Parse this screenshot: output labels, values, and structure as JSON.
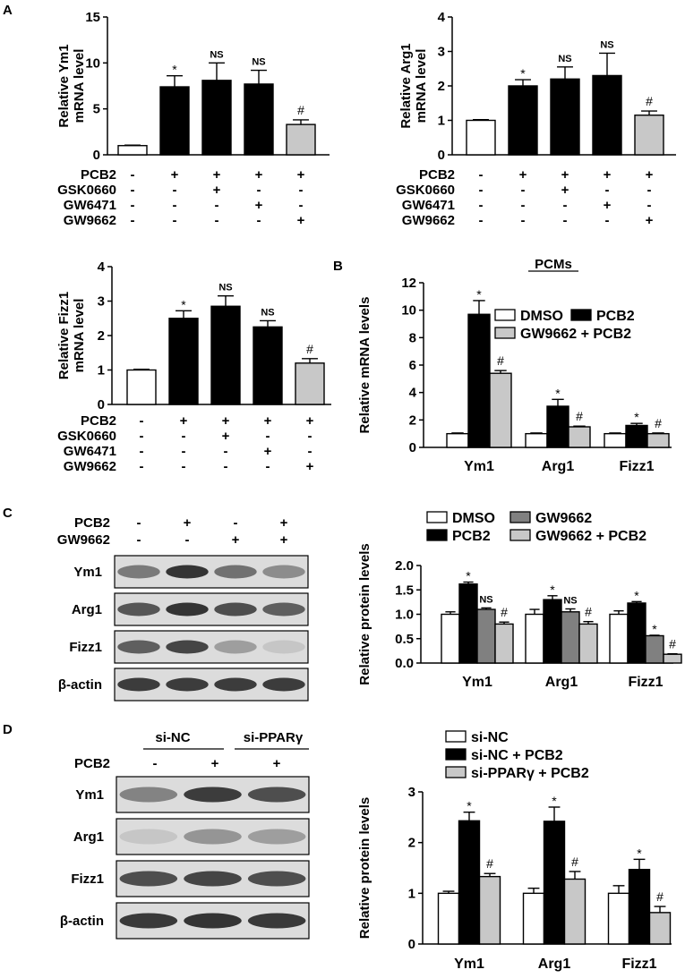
{
  "panel_letters": {
    "a": "A",
    "b": "B",
    "c": "C",
    "d": "D"
  },
  "colors": {
    "white": "#ffffff",
    "black": "#000000",
    "dark_gray": "#808080",
    "light_gray": "#c8c8c8",
    "band": "#2a2a2a",
    "blot_bg": "#dcdcdc"
  },
  "chart_data": [
    {
      "id": "A1",
      "type": "bar",
      "ylabel": "Relative Ym1 mRNA level",
      "ylim": [
        0,
        15
      ],
      "yticks": [
        "0",
        "5",
        "10",
        "15"
      ],
      "values": [
        1.0,
        7.4,
        8.1,
        7.7,
        3.3
      ],
      "errors": [
        0.05,
        1.2,
        1.9,
        1.5,
        0.5
      ],
      "fills": [
        "white",
        "black",
        "black",
        "black",
        "light_gray"
      ],
      "annotations": [
        "",
        "*",
        "NS",
        "NS",
        "#"
      ],
      "treatments": [
        {
          "label": "PCB2",
          "marks": [
            "-",
            "+",
            "+",
            "+",
            "+"
          ]
        },
        {
          "label": "GSK0660",
          "marks": [
            "-",
            "-",
            "+",
            "-",
            "-"
          ]
        },
        {
          "label": "GW6471",
          "marks": [
            "-",
            "-",
            "-",
            "+",
            "-"
          ]
        },
        {
          "label": "GW9662",
          "marks": [
            "-",
            "-",
            "-",
            "-",
            "+"
          ]
        }
      ]
    },
    {
      "id": "A2",
      "type": "bar",
      "ylabel": "Relative Arg1 mRNA level",
      "ylim": [
        0,
        4
      ],
      "yticks": [
        "0",
        "1",
        "2",
        "3",
        "4"
      ],
      "values": [
        1.0,
        2.0,
        2.2,
        2.3,
        1.15
      ],
      "errors": [
        0.02,
        0.18,
        0.35,
        0.65,
        0.12
      ],
      "fills": [
        "white",
        "black",
        "black",
        "black",
        "light_gray"
      ],
      "annotations": [
        "",
        "*",
        "NS",
        "NS",
        "#"
      ],
      "treatments": [
        {
          "label": "PCB2",
          "marks": [
            "-",
            "+",
            "+",
            "+",
            "+"
          ]
        },
        {
          "label": "GSK0660",
          "marks": [
            "-",
            "-",
            "+",
            "-",
            "-"
          ]
        },
        {
          "label": "GW6471",
          "marks": [
            "-",
            "-",
            "-",
            "+",
            "-"
          ]
        },
        {
          "label": "GW9662",
          "marks": [
            "-",
            "-",
            "-",
            "-",
            "+"
          ]
        }
      ]
    },
    {
      "id": "A3",
      "type": "bar",
      "ylabel": "Relative Fizz1 mRNA level",
      "ylim": [
        0,
        4
      ],
      "yticks": [
        "0",
        "1",
        "2",
        "3",
        "4"
      ],
      "values": [
        1.0,
        2.5,
        2.85,
        2.25,
        1.2
      ],
      "errors": [
        0.02,
        0.22,
        0.3,
        0.18,
        0.13
      ],
      "fills": [
        "white",
        "black",
        "black",
        "black",
        "light_gray"
      ],
      "annotations": [
        "",
        "*",
        "NS",
        "NS",
        "#"
      ],
      "treatments": [
        {
          "label": "PCB2",
          "marks": [
            "-",
            "+",
            "+",
            "+",
            "+"
          ]
        },
        {
          "label": "GSK0660",
          "marks": [
            "-",
            "-",
            "+",
            "-",
            "-"
          ]
        },
        {
          "label": "GW6471",
          "marks": [
            "-",
            "-",
            "-",
            "+",
            "-"
          ]
        },
        {
          "label": "GW9662",
          "marks": [
            "-",
            "-",
            "-",
            "-",
            "+"
          ]
        }
      ]
    },
    {
      "id": "B",
      "type": "bar",
      "title": "PCMs",
      "ylabel": "Relative mRNA levels",
      "ylim": [
        0,
        12
      ],
      "yticks": [
        "0",
        "2",
        "4",
        "6",
        "8",
        "10",
        "12"
      ],
      "categories": [
        "Ym1",
        "Arg1",
        "Fizz1"
      ],
      "series": [
        {
          "name": "DMSO",
          "fill": "white",
          "values": [
            1.0,
            1.0,
            1.0
          ],
          "errors": [
            0.05,
            0.05,
            0.05
          ],
          "annotations": [
            "",
            "",
            ""
          ]
        },
        {
          "name": "PCB2",
          "fill": "black",
          "values": [
            9.7,
            3.0,
            1.6
          ],
          "errors": [
            1.0,
            0.5,
            0.15
          ],
          "annotations": [
            "*",
            "*",
            "*"
          ]
        },
        {
          "name": "GW9662 + PCB2",
          "fill": "light_gray",
          "values": [
            5.4,
            1.5,
            1.0
          ],
          "errors": [
            0.2,
            0.05,
            0.05
          ],
          "annotations": [
            "#",
            "#",
            "#"
          ]
        }
      ],
      "legend": "top-right"
    },
    {
      "id": "C",
      "type": "bar",
      "ylabel": "Relative protein levels",
      "ylim": [
        0,
        2
      ],
      "yticks": [
        "0.0",
        "0.5",
        "1.0",
        "1.5",
        "2.0"
      ],
      "categories": [
        "Ym1",
        "Arg1",
        "Fizz1"
      ],
      "series": [
        {
          "name": "DMSO",
          "fill": "white",
          "values": [
            1.0,
            1.0,
            1.0
          ],
          "errors": [
            0.05,
            0.1,
            0.07
          ],
          "annotations": [
            "",
            "",
            ""
          ]
        },
        {
          "name": "PCB2",
          "fill": "black",
          "values": [
            1.62,
            1.3,
            1.23
          ],
          "errors": [
            0.04,
            0.08,
            0.03
          ],
          "annotations": [
            "*",
            "*",
            "*"
          ]
        },
        {
          "name": "GW9662",
          "fill": "dark_gray",
          "values": [
            1.1,
            1.05,
            0.56
          ],
          "errors": [
            0.03,
            0.06,
            0.01
          ],
          "annotations": [
            "NS",
            "NS",
            "*"
          ]
        },
        {
          "name": "GW9662 + PCB2",
          "fill": "light_gray",
          "values": [
            0.8,
            0.8,
            0.18
          ],
          "errors": [
            0.04,
            0.05,
            0.01
          ],
          "annotations": [
            "#",
            "#",
            "#"
          ]
        }
      ],
      "legend": "top"
    },
    {
      "id": "D",
      "type": "bar",
      "ylabel": "Relative protein levels",
      "ylim": [
        0,
        3
      ],
      "yticks": [
        "0",
        "1",
        "2",
        "3"
      ],
      "categories": [
        "Ym1",
        "Arg1",
        "Fizz1"
      ],
      "series": [
        {
          "name": "si-NC",
          "fill": "white",
          "values": [
            1.0,
            1.0,
            1.0
          ],
          "errors": [
            0.04,
            0.1,
            0.15
          ],
          "annotations": [
            "",
            "",
            ""
          ]
        },
        {
          "name": "si-NC + PCB2",
          "fill": "black",
          "values": [
            2.43,
            2.42,
            1.47
          ],
          "errors": [
            0.17,
            0.28,
            0.2
          ],
          "annotations": [
            "*",
            "*",
            "*"
          ]
        },
        {
          "name": "si-PPARγ + PCB2",
          "fill": "light_gray",
          "values": [
            1.33,
            1.28,
            0.62
          ],
          "errors": [
            0.06,
            0.15,
            0.12
          ],
          "annotations": [
            "#",
            "#",
            "#"
          ]
        }
      ],
      "legend": "top"
    }
  ],
  "blots": {
    "C": {
      "treatments": [
        {
          "label": "PCB2",
          "marks": [
            "-",
            "+",
            "-",
            "+"
          ]
        },
        {
          "label": "GW9662",
          "marks": [
            "-",
            "-",
            "+",
            "+"
          ]
        }
      ],
      "rows": [
        {
          "label": "Ym1",
          "intensity": [
            0.55,
            0.95,
            0.6,
            0.45
          ]
        },
        {
          "label": "Arg1",
          "intensity": [
            0.75,
            0.95,
            0.8,
            0.7
          ]
        },
        {
          "label": "Fizz1",
          "intensity": [
            0.7,
            0.85,
            0.35,
            0.12
          ]
        },
        {
          "label": "β-actin",
          "intensity": [
            0.9,
            0.9,
            0.9,
            0.9
          ]
        }
      ]
    },
    "D": {
      "groups": [
        "si-NC",
        "si-PPARγ"
      ],
      "treatments": [
        {
          "label": "PCB2",
          "marks": [
            "-",
            "+",
            "+"
          ]
        }
      ],
      "rows": [
        {
          "label": "Ym1",
          "intensity": [
            0.5,
            0.9,
            0.8
          ]
        },
        {
          "label": "Arg1",
          "intensity": [
            0.12,
            0.4,
            0.35
          ]
        },
        {
          "label": "Fizz1",
          "intensity": [
            0.8,
            0.85,
            0.8
          ]
        },
        {
          "label": "β-actin",
          "intensity": [
            0.92,
            0.95,
            0.92
          ]
        }
      ]
    }
  }
}
